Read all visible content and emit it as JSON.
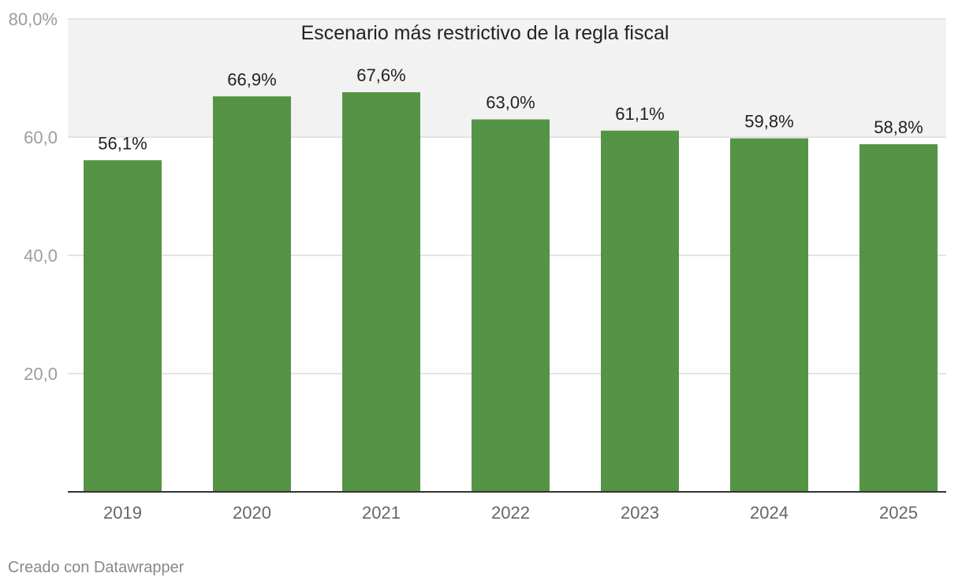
{
  "chart_data": {
    "type": "bar",
    "categories": [
      "2019",
      "2020",
      "2021",
      "2022",
      "2023",
      "2024",
      "2025"
    ],
    "values": [
      56.1,
      66.9,
      67.6,
      63.0,
      61.1,
      59.8,
      58.8
    ],
    "data_labels": [
      "56,1%",
      "66,9%",
      "67,6%",
      "63,0%",
      "61,1%",
      "59,8%",
      "58,8%"
    ],
    "ylim": [
      0,
      80
    ],
    "yticks": [
      20,
      40,
      60,
      80
    ],
    "ytick_labels": [
      "20,0",
      "40,0",
      "60,0",
      "80,0%"
    ],
    "grid": true,
    "highlight_range": {
      "from": 60,
      "to": 80,
      "label": "Escenario más restrictivo de la regla fiscal",
      "color": "#f2f2f2"
    },
    "bar_color": "#559445",
    "title": "",
    "xlabel": "",
    "ylabel": ""
  },
  "footer": {
    "credit": "Creado con Datawrapper"
  }
}
